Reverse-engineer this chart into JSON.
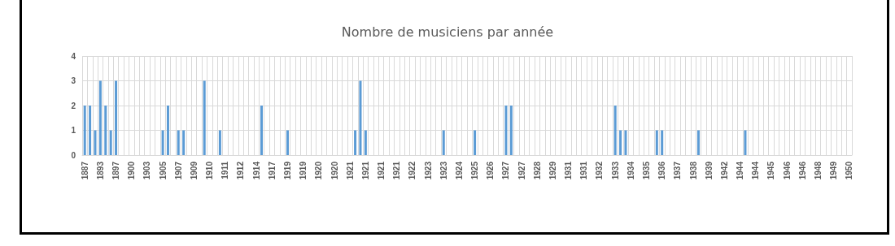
{
  "chart_data": {
    "type": "bar",
    "title": "Nombre de musiciens par année",
    "color": "#5b9bd5",
    "grid": true,
    "categories": [
      "1887",
      null,
      null,
      "1893",
      null,
      null,
      "1897",
      null,
      null,
      "1900",
      null,
      null,
      "1903",
      null,
      null,
      "1905",
      null,
      null,
      "1907",
      null,
      null,
      "1909",
      null,
      null,
      "1910",
      null,
      null,
      "1911",
      null,
      null,
      "1912",
      null,
      null,
      "1914",
      null,
      null,
      "1917",
      null,
      null,
      "1919",
      null,
      null,
      "1919",
      null,
      null,
      "1920",
      null,
      null,
      "1920",
      null,
      null,
      "1921",
      null,
      null,
      "1921",
      null,
      null,
      "1921",
      null,
      null,
      "1921",
      null,
      null,
      "1922",
      null,
      null,
      "1923",
      null,
      null,
      "1923",
      null,
      null,
      "1924",
      null,
      null,
      "1925",
      null,
      null,
      "1926",
      null,
      null,
      "1927",
      null,
      null,
      "1927",
      null,
      null,
      "1928",
      null,
      null,
      "1929",
      null,
      null,
      "1931",
      null,
      null,
      "1931",
      null,
      null,
      "1932",
      null,
      null,
      "1933",
      null,
      null,
      "1934",
      null,
      null,
      "1935",
      null,
      null,
      "1936",
      null,
      null,
      "1937",
      null,
      null,
      "1938",
      null,
      null,
      "1939",
      null,
      null,
      "1942",
      null,
      null,
      "1944",
      null,
      null,
      "1944",
      null,
      null,
      "1945",
      null,
      null,
      "1946",
      null,
      null,
      "1946",
      null,
      null,
      "1948",
      null,
      null,
      "1949",
      null,
      null,
      "1950"
    ],
    "values": [
      2,
      2,
      1,
      3,
      2,
      1,
      3,
      0,
      0,
      0,
      0,
      0,
      0,
      0,
      0,
      1,
      2,
      0,
      1,
      1,
      0,
      0,
      0,
      3,
      0,
      0,
      1,
      0,
      0,
      0,
      0,
      0,
      0,
      0,
      2,
      0,
      0,
      0,
      0,
      1,
      0,
      0,
      0,
      0,
      0,
      0,
      0,
      0,
      0,
      0,
      0,
      0,
      1,
      3,
      1,
      0,
      0,
      0,
      0,
      0,
      0,
      0,
      0,
      0,
      0,
      0,
      0,
      0,
      0,
      1,
      0,
      0,
      0,
      0,
      0,
      1,
      0,
      0,
      0,
      0,
      0,
      2,
      2,
      0,
      0,
      0,
      0,
      0,
      0,
      0,
      0,
      0,
      0,
      0,
      0,
      0,
      0,
      0,
      0,
      0,
      0,
      0,
      2,
      1,
      1,
      0,
      0,
      0,
      0,
      0,
      1,
      1,
      0,
      0,
      0,
      0,
      0,
      0,
      1,
      0,
      0,
      0,
      0,
      0,
      0,
      0,
      0,
      1,
      0,
      0,
      0,
      0,
      0,
      0,
      0,
      0,
      0,
      0,
      0,
      0,
      0,
      0,
      0,
      0,
      0,
      0,
      0,
      0
    ],
    "ylim": [
      0,
      4
    ],
    "yticks": [
      0,
      1,
      2,
      3,
      4
    ]
  }
}
